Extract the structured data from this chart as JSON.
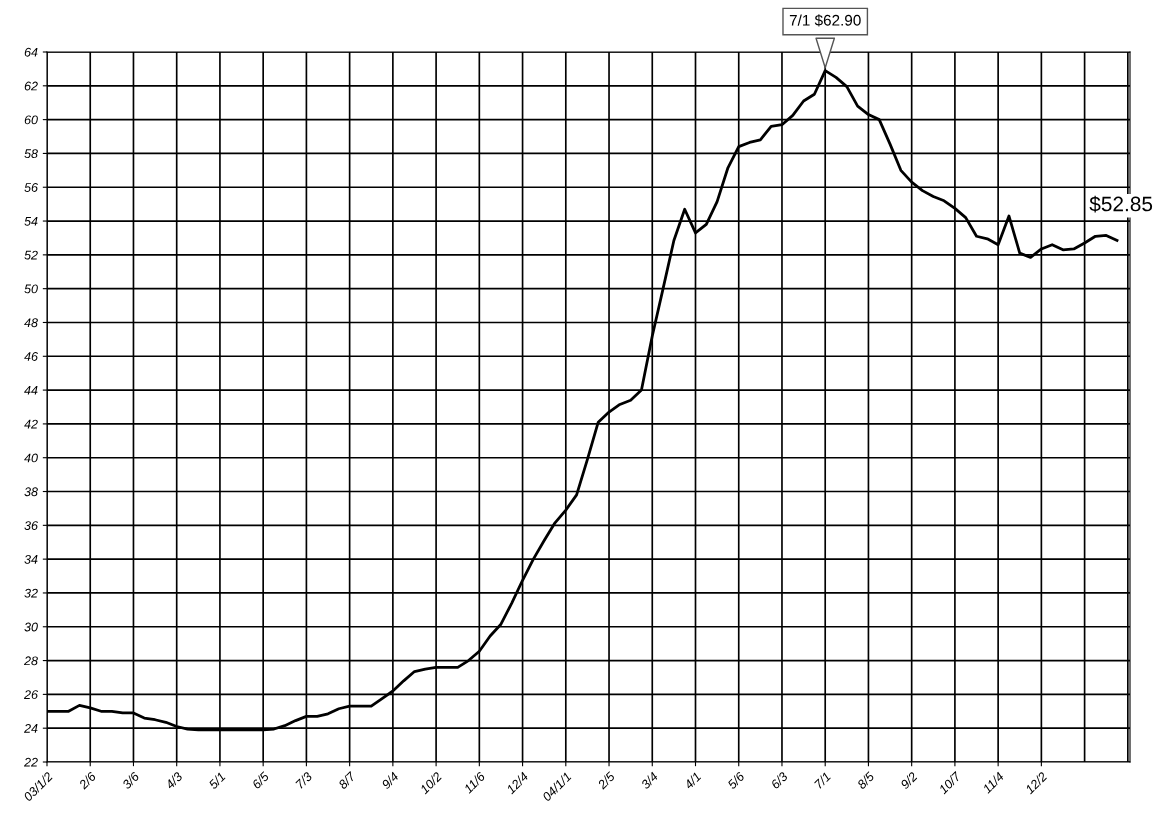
{
  "chart_data": {
    "type": "line",
    "categories": [
      "03/1/2",
      null,
      null,
      null,
      "2/6",
      null,
      null,
      null,
      "3/6",
      null,
      null,
      null,
      "4/3",
      null,
      null,
      null,
      "5/1",
      null,
      null,
      null,
      "6/5",
      null,
      null,
      null,
      "7/3",
      null,
      null,
      null,
      "8/7",
      null,
      null,
      null,
      "9/4",
      null,
      null,
      null,
      "10/2",
      null,
      null,
      null,
      "11/6",
      null,
      null,
      null,
      "12/4",
      null,
      null,
      null,
      "04/1/1",
      null,
      null,
      null,
      "2/5",
      null,
      null,
      null,
      "3/4",
      null,
      null,
      null,
      "4/1",
      null,
      null,
      null,
      "5/6",
      null,
      null,
      null,
      "6/3",
      null,
      null,
      null,
      "7/1",
      null,
      null,
      null,
      "8/5",
      null,
      null,
      null,
      "9/2",
      null,
      null,
      null,
      "10/7",
      null,
      null,
      null,
      "11/4",
      null,
      null,
      null,
      "12/2",
      null,
      null,
      null,
      null,
      null,
      null,
      null
    ],
    "series": [
      {
        "color": "#000000",
        "values": [
          25.0,
          25.0,
          25.0,
          25.35,
          25.2,
          25.0,
          25.0,
          24.9,
          24.9,
          24.6,
          24.5,
          24.35,
          24.1,
          23.95,
          23.9,
          23.9,
          23.9,
          23.9,
          23.9,
          23.9,
          23.9,
          23.95,
          24.15,
          24.45,
          24.7,
          24.7,
          24.85,
          25.15,
          25.3,
          25.3,
          25.3,
          25.75,
          26.2,
          26.8,
          27.35,
          27.5,
          27.6,
          27.6,
          27.6,
          28.0,
          28.55,
          29.45,
          30.15,
          31.4,
          32.75,
          34.0,
          35.1,
          36.15,
          36.9,
          37.8,
          39.9,
          42.1,
          42.7,
          43.15,
          43.4,
          44.0,
          47.2,
          50.0,
          52.85,
          54.7,
          53.3,
          53.8,
          55.15,
          57.15,
          58.4,
          58.65,
          58.8,
          59.6,
          59.7,
          60.25,
          61.1,
          61.5,
          62.9,
          62.5,
          61.95,
          60.8,
          60.3,
          60.0,
          58.55,
          57.0,
          56.3,
          55.8,
          55.45,
          55.2,
          54.75,
          54.2,
          53.1,
          52.95,
          52.6,
          54.3,
          52.1,
          51.85,
          52.35,
          52.6,
          52.3,
          52.35,
          52.7,
          53.1,
          53.15,
          52.85
        ]
      }
    ],
    "ylim": [
      22,
      64
    ],
    "yticks": [
      22,
      24,
      26,
      28,
      30,
      32,
      34,
      36,
      38,
      40,
      42,
      44,
      46,
      48,
      50,
      52,
      54,
      56,
      58,
      60,
      62,
      64
    ],
    "grid": true,
    "marker": "none",
    "line_style": "solid",
    "annotations": [
      {
        "text": "7/1 $62.90",
        "x": "7/1",
        "y": 62.9
      },
      {
        "text": "$52.85",
        "y": 52.85
      }
    ]
  }
}
